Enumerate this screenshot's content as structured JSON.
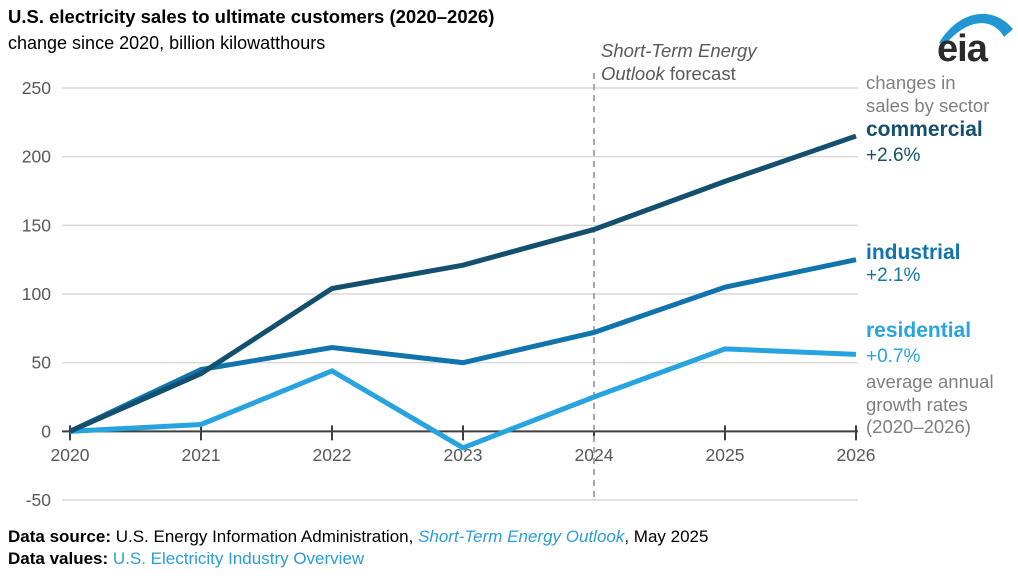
{
  "header": {
    "title": "U.S. electricity sales to ultimate customers (2020–2026)",
    "subtitle": "change since 2020, billion kilowatthours",
    "logo_text": "eia",
    "logo_blue": "#2196d3"
  },
  "forecast_label": {
    "line1": "Short-Term Energy",
    "line2_italic": "Outlook",
    "line2_regular": " forecast"
  },
  "right_panel": {
    "caption_top": "changes in\nsales by sector",
    "caption_bottom": "average annual\ngrowth rates\n(2020–2026)",
    "caption_color": "#7f7f7f"
  },
  "chart_data": {
    "type": "line",
    "title": "U.S. electricity sales to ultimate customers (2020–2026)",
    "ylabel": "change since 2020, billion kilowatthours",
    "x": [
      2020,
      2021,
      2022,
      2023,
      2024,
      2025,
      2026
    ],
    "series": [
      {
        "name": "commercial",
        "growth_label": "+2.6%",
        "color": "#134f6e",
        "values": [
          0,
          42,
          104,
          121,
          147,
          182,
          215
        ]
      },
      {
        "name": "industrial",
        "growth_label": "+2.1%",
        "color": "#1274ad",
        "values": [
          0,
          45,
          61,
          50,
          72,
          105,
          125
        ]
      },
      {
        "name": "residential",
        "growth_label": "+0.7%",
        "color": "#27a3e0",
        "values": [
          0,
          5,
          44,
          -12,
          25,
          60,
          56
        ]
      }
    ],
    "ylim": [
      -50,
      250
    ],
    "ytick_step": 50,
    "forecast_x": 2024,
    "grid": true,
    "legend_position": "right",
    "colors": {
      "grid": "#d9d9d9",
      "axis": "#3f3f3f",
      "axis_text": "#595959",
      "forecast_line": "#a8a8a8"
    }
  },
  "footer": {
    "source_label": "Data source: ",
    "source_text": "U.S. Energy Information Administration, ",
    "source_link": "Short-Term Energy Outlook",
    "source_suffix": ", May 2025",
    "values_label": "Data values: ",
    "values_link": "U.S. Electricity Industry Overview",
    "link_color": "#2b9cd8"
  }
}
